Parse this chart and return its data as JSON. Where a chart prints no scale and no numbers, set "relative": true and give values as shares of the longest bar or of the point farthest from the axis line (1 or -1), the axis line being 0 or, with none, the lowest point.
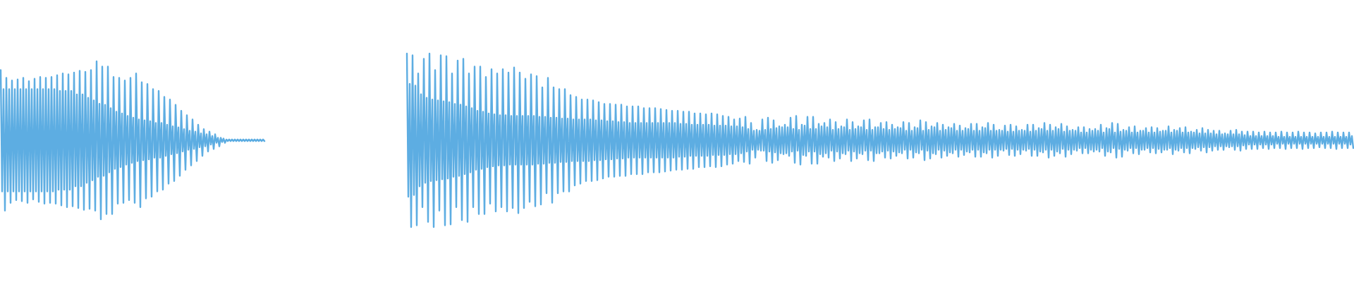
{
  "chart_data": [
    {
      "type": "line",
      "relative": true,
      "categories": [
        null,
        null,
        null,
        null,
        null,
        null,
        null,
        null,
        null,
        null,
        null,
        null,
        null,
        null,
        null,
        null,
        null,
        null,
        null,
        null,
        null,
        null,
        null,
        null,
        null,
        null,
        null,
        null,
        null,
        null,
        null,
        null,
        null,
        null,
        null,
        null,
        null,
        null,
        null,
        null,
        null,
        null,
        null,
        null,
        null,
        null,
        null,
        null,
        null,
        null,
        null,
        null,
        null,
        null,
        null,
        null,
        null,
        null,
        null,
        null,
        null,
        null,
        null,
        null,
        null,
        null,
        null,
        null,
        null,
        null,
        null,
        null,
        null,
        null,
        null,
        null,
        null,
        null,
        null,
        null,
        null,
        null,
        null,
        null,
        null,
        null,
        null,
        null,
        null,
        null,
        null,
        null,
        null,
        null,
        null,
        null,
        null,
        null,
        null,
        null,
        null,
        null,
        null,
        null,
        null,
        null,
        null,
        null,
        null,
        null,
        null,
        null,
        null,
        null,
        null,
        null,
        null,
        null,
        null,
        null,
        null,
        null,
        null,
        null,
        null,
        null,
        null,
        null,
        null,
        null,
        null,
        null,
        null,
        null,
        null,
        null,
        null,
        null,
        null,
        null,
        null,
        null,
        null,
        null,
        null,
        null,
        null,
        null,
        null,
        null,
        null,
        null,
        null,
        null,
        null,
        null,
        null,
        null,
        null,
        null,
        null,
        null,
        null,
        null,
        null,
        null,
        null,
        null,
        null,
        null,
        null,
        null,
        null,
        null,
        null,
        null,
        null,
        null,
        null,
        null,
        null,
        null,
        null,
        null,
        null,
        null,
        null,
        null
      ],
      "series": [
        {
          "color": "#5dade2",
          "values": [
            0.945,
            0.176,
            0.824,
            0.055,
            0.896,
            0.176,
            0.824,
            0.104,
            0.879,
            0.176,
            0.824,
            0.121,
            0.885,
            0.176,
            0.824,
            0.115,
            0.896,
            0.176,
            0.824,
            0.104,
            0.874,
            0.176,
            0.824,
            0.126,
            0.89,
            0.176,
            0.824,
            0.11,
            0.901,
            0.176,
            0.824,
            0.099,
            0.896,
            0.176,
            0.824,
            0.104,
            0.901,
            0.176,
            0.824,
            0.099,
            0.912,
            0.187,
            0.813,
            0.088,
            0.923,
            0.187,
            0.813,
            0.077,
            0.918,
            0.187,
            0.813,
            0.082,
            0.929,
            0.209,
            0.791,
            0.071,
            0.94,
            0.209,
            0.791,
            0.06,
            0.934,
            0.231,
            0.769,
            0.066,
            0.945,
            0.247,
            0.753,
            0.055,
            1,
            0.269,
            0.731,
            0,
            0.967,
            0.275,
            0.725,
            0.033,
            0.967,
            0.297,
            0.703,
            0.033,
            0.901,
            0.319,
            0.681,
            0.099,
            0.896,
            0.33,
            0.67,
            0.104,
            0.879,
            0.346,
            0.654,
            0.121,
            0.896,
            0.357,
            0.643,
            0.104,
            0.923,
            0.368,
            0.632,
            0.077,
            0.868,
            0.374,
            0.626,
            0.132,
            0.857,
            0.379,
            0.621,
            0.143,
            0.824,
            0.39,
            0.61,
            0.176,
            0.813,
            0.39,
            0.61,
            0.187,
            0.775,
            0.401,
            0.599,
            0.225,
            0.758,
            0.412,
            0.588,
            0.242,
            0.725,
            0.418,
            0.582,
            0.275,
            0.687,
            0.429,
            0.571,
            0.313,
            0.659,
            0.44,
            0.56,
            0.341,
            0.632,
            0.445,
            0.555,
            0.368,
            0.599,
            0.456,
            0.544,
            0.401,
            0.571,
            0.462,
            0.538,
            0.429,
            0.555,
            0.473,
            0.527,
            0.445,
            0.538,
            0.484,
            0.516,
            0.462,
            0.516,
            0.489,
            0.511,
            0.484,
            0.505,
            0.495,
            0.505,
            0.495,
            0.505,
            0.495,
            0.505,
            0.495,
            0.505,
            0.495,
            0.505,
            0.495,
            0.505,
            0.495,
            0.505,
            0.495,
            0.505,
            0.495,
            0.505,
            0.495,
            0.505,
            0.495,
            0.505,
            0.495,
            0.505,
            0.495,
            0.505,
            0.495
          ]
        }
      ]
    },
    {
      "type": "line",
      "relative": true,
      "categories": [
        null,
        null,
        null,
        null,
        null,
        null,
        null,
        null,
        null,
        null,
        null,
        null,
        null,
        null,
        null,
        null,
        null,
        null,
        null,
        null,
        null,
        null,
        null,
        null,
        null,
        null,
        null,
        null,
        null,
        null,
        null,
        null,
        null,
        null,
        null,
        null,
        null,
        null,
        null,
        null,
        null,
        null,
        null,
        null,
        null,
        null,
        null,
        null,
        null,
        null,
        null,
        null,
        null,
        null,
        null,
        null,
        null,
        null,
        null,
        null,
        null,
        null,
        null,
        null,
        null,
        null,
        null,
        null,
        null,
        null,
        null,
        null,
        null,
        null,
        null,
        null,
        null,
        null,
        null,
        null,
        null,
        null,
        null,
        null,
        null,
        null,
        null,
        null,
        null,
        null,
        null,
        null,
        null,
        null,
        null,
        null,
        null,
        null,
        null,
        null,
        null,
        null,
        null,
        null,
        null,
        null,
        null,
        null,
        null,
        null,
        null,
        null,
        null,
        null,
        null,
        null,
        null,
        null,
        null,
        null,
        null,
        null,
        null,
        null,
        null,
        null,
        null,
        null,
        null,
        null,
        null,
        null,
        null,
        null,
        null,
        null,
        null,
        null,
        null,
        null,
        null,
        null,
        null,
        null,
        null,
        null,
        null,
        null,
        null,
        null,
        null,
        null,
        null,
        null,
        null,
        null,
        null,
        null,
        null,
        null,
        null,
        null,
        null,
        null,
        null,
        null,
        null,
        null,
        null,
        null,
        null,
        null,
        null,
        null,
        null,
        null,
        null,
        null,
        null,
        null,
        null,
        null,
        null,
        null,
        null,
        null,
        null,
        null,
        null,
        null,
        null,
        null,
        null,
        null,
        null,
        null,
        null,
        null,
        null,
        null,
        null,
        null,
        null,
        null,
        null,
        null,
        null,
        null,
        null,
        null,
        null,
        null,
        null,
        null,
        null,
        null,
        null,
        null,
        null,
        null,
        null,
        null,
        null,
        null,
        null,
        null,
        null,
        null,
        null,
        null,
        null,
        null,
        null,
        null,
        null,
        null,
        null,
        null,
        null,
        null,
        null,
        null,
        null,
        null,
        null,
        null,
        null,
        null,
        null,
        null,
        null,
        null,
        null,
        null,
        null,
        null,
        null,
        null,
        null,
        null,
        null,
        null,
        null,
        null,
        null,
        null,
        null,
        null,
        null,
        null,
        null,
        null,
        null,
        null,
        null,
        null,
        null,
        null,
        null,
        null,
        null,
        null,
        null,
        null,
        null,
        null,
        null,
        null,
        null,
        null,
        null,
        null,
        null,
        null,
        null,
        null,
        null,
        null,
        null,
        null,
        null,
        null,
        null,
        null,
        null,
        null,
        null,
        null,
        null,
        null,
        null,
        null,
        null,
        null,
        null,
        null,
        null,
        null,
        null,
        null,
        null,
        null,
        null,
        null,
        null,
        null,
        null,
        null,
        null,
        null,
        null,
        null,
        null,
        null,
        null,
        null,
        null,
        null,
        null,
        null,
        null,
        null,
        null,
        null,
        null,
        null,
        null,
        null,
        null,
        null,
        null,
        null,
        null,
        null,
        null,
        null,
        null,
        null,
        null,
        null,
        null,
        null,
        null,
        null,
        null,
        null,
        null,
        null,
        null,
        null,
        null,
        null,
        null,
        null,
        null,
        null,
        null,
        null,
        null,
        null,
        null,
        null,
        null,
        null,
        null,
        null,
        null,
        null,
        null,
        null,
        null,
        null,
        null,
        null,
        null,
        null,
        null,
        null,
        null,
        null,
        null,
        null,
        null,
        null,
        null,
        null,
        null,
        null,
        null,
        null,
        null,
        null,
        null,
        null,
        null,
        null,
        null,
        null,
        null,
        null,
        null,
        null,
        null,
        null,
        null,
        null,
        null,
        null,
        null,
        null,
        null,
        null,
        null,
        null,
        null,
        null,
        null,
        null,
        null,
        null,
        null,
        null,
        null,
        null,
        null,
        null,
        null,
        null,
        null,
        null,
        null,
        null,
        null,
        null,
        null,
        null,
        null,
        null,
        null,
        null,
        null,
        null,
        null,
        null,
        null,
        null,
        null,
        null,
        null,
        null,
        null,
        null,
        null,
        null,
        null,
        null,
        null,
        null,
        null,
        null,
        null,
        null,
        null,
        null,
        null,
        null,
        null,
        null,
        null,
        null,
        null,
        null,
        null,
        null,
        null,
        null,
        null,
        null,
        null,
        null,
        null,
        null,
        null,
        null,
        null,
        null,
        null,
        null,
        null,
        null,
        null,
        null,
        null,
        null,
        null,
        null,
        null,
        null,
        null,
        null,
        null,
        null,
        null,
        null,
        null,
        null,
        null,
        null,
        null,
        null,
        null,
        null,
        null,
        null,
        null,
        null,
        null,
        null,
        null,
        null,
        null,
        null,
        null,
        null,
        null,
        null,
        null,
        null,
        null,
        null,
        null,
        null,
        null,
        null,
        null,
        null,
        null,
        null,
        null,
        null,
        null,
        null,
        null,
        null,
        null,
        null,
        null,
        null,
        null,
        null,
        null,
        null,
        null,
        null,
        null,
        null,
        null,
        null,
        null,
        null,
        null,
        null,
        null,
        null,
        null,
        null,
        null,
        null,
        null,
        null,
        null,
        null,
        null,
        null,
        null,
        null,
        null,
        null,
        null,
        null,
        null,
        null,
        null,
        null,
        null,
        null,
        null,
        null,
        null,
        null,
        null,
        null,
        null,
        null,
        null,
        null,
        null,
        null,
        null,
        null,
        null,
        null,
        null,
        null,
        null,
        null,
        null,
        null,
        null,
        null,
        null,
        null,
        null,
        null,
        null,
        null,
        null,
        null,
        null,
        null,
        null,
        null,
        null,
        null,
        null,
        null,
        null,
        null,
        null,
        null,
        null,
        null,
        null,
        null,
        null,
        null,
        null,
        null,
        null,
        null,
        null,
        null,
        null,
        null,
        null,
        null,
        null,
        null,
        null,
        null,
        null,
        null
      ],
      "series": [
        {
          "color": "#5dade2",
          "values": [
            1,
            0.175,
            0.825,
            0,
            0.99,
            0.185,
            0.815,
            0.01,
            0.885,
            0.235,
            0.765,
            0.115,
            0.97,
            0.255,
            0.745,
            0.03,
            1,
            0.265,
            0.735,
            0,
            0.905,
            0.27,
            0.73,
            0.095,
            0.99,
            0.275,
            0.725,
            0.01,
            0.985,
            0.28,
            0.72,
            0.015,
            0.885,
            0.29,
            0.71,
            0.115,
            0.96,
            0.295,
            0.705,
            0.04,
            0.97,
            0.305,
            0.695,
            0.03,
            0.885,
            0.315,
            0.685,
            0.115,
            0.925,
            0.33,
            0.67,
            0.075,
            0.925,
            0.335,
            0.665,
            0.075,
            0.865,
            0.345,
            0.655,
            0.135,
            0.91,
            0.35,
            0.65,
            0.09,
            0.885,
            0.355,
            0.645,
            0.115,
            0.91,
            0.355,
            0.645,
            0.09,
            0.89,
            0.36,
            0.64,
            0.11,
            0.92,
            0.36,
            0.64,
            0.08,
            0.89,
            0.36,
            0.64,
            0.11,
            0.855,
            0.36,
            0.64,
            0.145,
            0.88,
            0.36,
            0.64,
            0.12,
            0.87,
            0.365,
            0.635,
            0.13,
            0.805,
            0.365,
            0.635,
            0.195,
            0.86,
            0.37,
            0.63,
            0.14,
            0.805,
            0.37,
            0.63,
            0.195,
            0.795,
            0.375,
            0.625,
            0.205,
            0.795,
            0.375,
            0.625,
            0.205,
            0.76,
            0.38,
            0.62,
            0.24,
            0.75,
            0.38,
            0.62,
            0.25,
            0.735,
            0.38,
            0.62,
            0.265,
            0.735,
            0.38,
            0.62,
            0.265,
            0.73,
            0.385,
            0.615,
            0.27,
            0.72,
            0.385,
            0.615,
            0.28,
            0.71,
            0.39,
            0.61,
            0.29,
            0.71,
            0.39,
            0.61,
            0.29,
            0.705,
            0.395,
            0.605,
            0.295,
            0.705,
            0.395,
            0.605,
            0.295,
            0.695,
            0.4,
            0.6,
            0.305,
            0.695,
            0.4,
            0.6,
            0.305,
            0.695,
            0.4,
            0.6,
            0.305,
            0.685,
            0.4,
            0.6,
            0.315,
            0.685,
            0.4,
            0.6,
            0.315,
            0.685,
            0.4,
            0.6,
            0.315,
            0.68,
            0.4,
            0.6,
            0.32,
            0.675,
            0.4,
            0.6,
            0.325,
            0.67,
            0.4,
            0.6,
            0.33,
            0.67,
            0.405,
            0.595,
            0.33,
            0.665,
            0.405,
            0.595,
            0.335,
            0.665,
            0.41,
            0.59,
            0.335,
            0.655,
            0.41,
            0.59,
            0.345,
            0.655,
            0.41,
            0.59,
            0.345,
            0.65,
            0.41,
            0.59,
            0.35,
            0.655,
            0.415,
            0.585,
            0.345,
            0.65,
            0.415,
            0.585,
            0.35,
            0.64,
            0.415,
            0.585,
            0.36,
            0.635,
            0.42,
            0.58,
            0.365,
            0.62,
            0.42,
            0.58,
            0.38,
            0.625,
            0.425,
            0.575,
            0.375,
            0.635,
            0.435,
            0.565,
            0.365,
            0.6,
            0.445,
            0.555,
            0.4,
            0.56,
            0.445,
            0.555,
            0.44,
            0.62,
            0.44,
            0.56,
            0.38,
            0.63,
            0.435,
            0.565,
            0.37,
            0.615,
            0.43,
            0.57,
            0.385,
            0.58,
            0.425,
            0.575,
            0.42,
            0.59,
            0.425,
            0.575,
            0.41,
            0.63,
            0.435,
            0.565,
            0.37,
            0.64,
            0.44,
            0.56,
            0.36,
            0.59,
            0.415,
            0.585,
            0.41,
            0.635,
            0.435,
            0.565,
            0.365,
            0.635,
            0.435,
            0.565,
            0.365,
            0.595,
            0.42,
            0.58,
            0.405,
            0.6,
            0.425,
            0.575,
            0.4,
            0.62,
            0.44,
            0.56,
            0.38,
            0.605,
            0.435,
            0.565,
            0.395,
            0.58,
            0.425,
            0.575,
            0.42,
            0.62,
            0.44,
            0.56,
            0.38,
            0.605,
            0.435,
            0.565,
            0.395,
            0.58,
            0.425,
            0.575,
            0.42,
            0.615,
            0.44,
            0.56,
            0.385,
            0.62,
            0.44,
            0.56,
            0.38,
            0.575,
            0.425,
            0.575,
            0.425,
            0.6,
            0.435,
            0.565,
            0.4,
            0.605,
            0.44,
            0.56,
            0.395,
            0.59,
            0.435,
            0.565,
            0.41,
            0.575,
            0.43,
            0.57,
            0.425,
            0.605,
            0.445,
            0.555,
            0.395,
            0.6,
            0.445,
            0.555,
            0.4,
            0.575,
            0.43,
            0.57,
            0.425,
            0.615,
            0.445,
            0.555,
            0.385,
            0.605,
            0.44,
            0.56,
            0.395,
            0.58,
            0.425,
            0.575,
            0.42,
            0.6,
            0.445,
            0.555,
            0.4,
            0.59,
            0.44,
            0.56,
            0.41,
            0.575,
            0.43,
            0.57,
            0.425,
            0.595,
            0.445,
            0.555,
            0.405,
            0.585,
            0.445,
            0.555,
            0.415,
            0.57,
            0.435,
            0.565,
            0.43,
            0.595,
            0.445,
            0.555,
            0.405,
            0.595,
            0.445,
            0.555,
            0.405,
            0.575,
            0.43,
            0.57,
            0.425,
            0.6,
            0.445,
            0.555,
            0.4,
            0.59,
            0.445,
            0.555,
            0.41,
            0.56,
            0.445,
            0.555,
            0.44,
            0.585,
            0.45,
            0.55,
            0.415,
            0.59,
            0.45,
            0.55,
            0.41,
            0.58,
            0.445,
            0.555,
            0.42,
            0.56,
            0.445,
            0.555,
            0.44,
            0.59,
            0.45,
            0.55,
            0.41,
            0.59,
            0.445,
            0.555,
            0.41,
            0.57,
            0.435,
            0.565,
            0.43,
            0.6,
            0.445,
            0.555,
            0.4,
            0.59,
            0.445,
            0.555,
            0.41,
            0.575,
            0.435,
            0.565,
            0.425,
            0.595,
            0.45,
            0.55,
            0.405,
            0.58,
            0.445,
            0.555,
            0.42,
            0.56,
            0.445,
            0.555,
            0.44,
            0.575,
            0.455,
            0.545,
            0.425,
            0.575,
            0.455,
            0.545,
            0.425,
            0.565,
            0.445,
            0.555,
            0.435,
            0.565,
            0.445,
            0.555,
            0.435,
            0.59,
            0.455,
            0.545,
            0.41,
            0.57,
            0.435,
            0.565,
            0.43,
            0.6,
            0.455,
            0.545,
            0.4,
            0.595,
            0.45,
            0.55,
            0.405,
            0.56,
            0.445,
            0.555,
            0.44,
            0.575,
            0.455,
            0.545,
            0.425,
            0.58,
            0.455,
            0.545,
            0.42,
            0.555,
            0.445,
            0.555,
            0.445,
            0.57,
            0.455,
            0.545,
            0.43,
            0.575,
            0.455,
            0.545,
            0.425,
            0.57,
            0.45,
            0.55,
            0.43,
            0.555,
            0.445,
            0.555,
            0.445,
            0.58,
            0.455,
            0.545,
            0.42,
            0.56,
            0.445,
            0.555,
            0.44,
            0.57,
            0.455,
            0.545,
            0.43,
            0.575,
            0.455,
            0.545,
            0.425,
            0.55,
            0.455,
            0.545,
            0.45,
            0.56,
            0.46,
            0.54,
            0.44,
            0.57,
            0.46,
            0.54,
            0.43,
            0.56,
            0.46,
            0.54,
            0.44,
            0.555,
            0.465,
            0.535,
            0.445,
            0.555,
            0.465,
            0.535,
            0.445,
            0.54,
            0.465,
            0.535,
            0.46,
            0.555,
            0.465,
            0.535,
            0.445,
            0.56,
            0.465,
            0.535,
            0.44,
            0.55,
            0.47,
            0.53,
            0.45,
            0.55,
            0.475,
            0.525,
            0.45,
            0.55,
            0.475,
            0.525,
            0.45,
            0.545,
            0.475,
            0.525,
            0.455,
            0.55,
            0.475,
            0.525,
            0.45,
            0.545,
            0.475,
            0.525,
            0.455,
            0.545,
            0.48,
            0.52,
            0.455,
            0.55,
            0.48,
            0.52,
            0.45,
            0.545,
            0.48,
            0.52,
            0.455,
            0.545,
            0.48,
            0.52,
            0.455,
            0.55,
            0.48,
            0.52,
            0.45,
            0.545,
            0.48,
            0.52,
            0.455,
            0.545,
            0.48,
            0.52,
            0.455,
            0.54,
            0.48,
            0.52,
            0.46,
            0.545,
            0.48,
            0.52,
            0.455,
            0.545,
            0.48,
            0.52,
            0.455,
            0.55,
            0.48,
            0.52,
            0.45,
            0.545,
            0.48,
            0.52,
            0.455,
            0.545,
            0.48,
            0.52,
            0.455,
            0.545,
            0.475,
            0.525,
            0.455
          ]
        }
      ]
    }
  ]
}
